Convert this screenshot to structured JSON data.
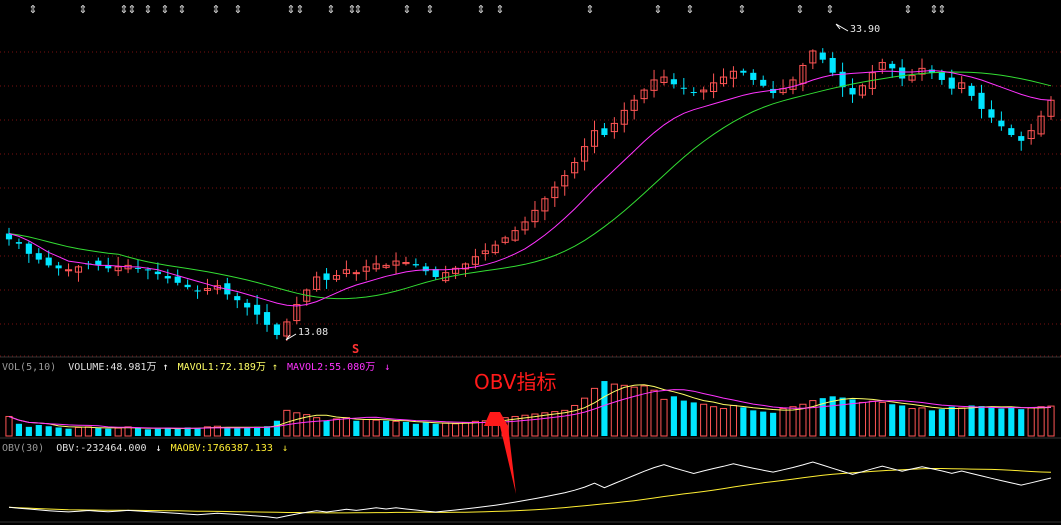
{
  "colors": {
    "up": "#ff5555",
    "down": "#00e5ff",
    "ma_short": "#ff33ff",
    "ma_long": "#33dd33",
    "vol_ma1": "#ffff66",
    "vol_ma2": "#ff33ff",
    "obv": "#ffffff",
    "maobv": "#ffee33",
    "grid": "#7a1010",
    "label": "#c0c0c0",
    "arrow": "#ff1a1a"
  },
  "price_panel": {
    "high_label": "33.90",
    "low_label": "13.08",
    "s_marker": "S"
  },
  "volume_panel": {
    "name": "VOL(5,10)",
    "volume_label": "VOLUME:48.981万",
    "mavol1_label": "MAVOL1:72.189万",
    "mavol2_label": "MAVOL2:55.080万",
    "up_arrow": "↑",
    "down_arrow": "↓"
  },
  "obv_panel": {
    "name": "OBV(30)",
    "obv_label": "OBV:-232464.000",
    "maobv_label": "MAOBV:1766387.133",
    "down_arrow": "↓"
  },
  "annotation": {
    "text": "OBV指标"
  },
  "chart_data": {
    "type": "candlestick",
    "price_min": 12.5,
    "price_max": 35,
    "high": 33.9,
    "low": 13.08,
    "closes": [
      20.0,
      19.7,
      19.0,
      18.6,
      18.2,
      18.0,
      17.9,
      18.1,
      18.3,
      18.2,
      18.0,
      18.1,
      18.2,
      18.0,
      17.9,
      17.6,
      17.3,
      17.0,
      16.7,
      16.4,
      16.6,
      16.8,
      16.2,
      15.8,
      15.3,
      14.8,
      14.1,
      13.4,
      14.3,
      15.5,
      16.5,
      17.4,
      17.2,
      17.5,
      17.9,
      17.7,
      18.1,
      18.3,
      18.2,
      18.5,
      18.4,
      18.2,
      17.8,
      17.4,
      17.7,
      18.0,
      18.3,
      18.8,
      19.2,
      19.6,
      20.1,
      20.6,
      21.2,
      22.0,
      22.8,
      23.6,
      24.4,
      25.3,
      26.4,
      27.5,
      27.2,
      28.0,
      28.9,
      29.6,
      30.3,
      31.0,
      31.2,
      30.7,
      30.4,
      30.1,
      30.3,
      30.8,
      31.2,
      31.6,
      31.5,
      31.0,
      30.6,
      30.1,
      30.4,
      31.0,
      32.0,
      33.0,
      32.4,
      31.5,
      30.5,
      30.0,
      30.6,
      31.5,
      32.2,
      31.8,
      31.1,
      31.3,
      31.8,
      31.5,
      31.0,
      30.4,
      30.8,
      29.9,
      29.0,
      28.4,
      27.8,
      27.2,
      26.8,
      27.5,
      28.5,
      29.6
    ],
    "volumes": [
      32,
      20,
      15,
      18,
      16,
      14,
      12,
      14,
      15,
      13,
      12,
      13,
      15,
      13,
      11,
      12,
      13,
      12,
      14,
      13,
      15,
      16,
      14,
      13,
      14,
      15,
      16,
      25,
      42,
      38,
      35,
      30,
      25,
      28,
      30,
      25,
      27,
      26,
      25,
      24,
      23,
      20,
      22,
      20,
      21,
      20,
      22,
      24,
      25,
      27,
      30,
      32,
      34,
      36,
      38,
      40,
      42,
      50,
      62,
      78,
      90,
      85,
      83,
      80,
      82,
      75,
      60,
      65,
      58,
      55,
      52,
      48,
      45,
      50,
      47,
      42,
      40,
      38,
      45,
      48,
      52,
      58,
      62,
      65,
      63,
      60,
      55,
      57,
      55,
      52,
      50,
      45,
      46,
      42,
      44,
      48,
      46,
      50,
      49,
      48,
      45,
      47,
      44,
      46,
      48,
      49
    ],
    "ma_short": [
      20.4,
      20.2,
      19.9,
      19.5,
      19.1,
      18.8,
      18.5,
      18.4,
      18.3,
      18.2,
      18.2,
      18.15,
      18.1,
      18.1,
      18.0,
      17.9,
      17.7,
      17.5,
      17.3,
      17.1,
      16.9,
      16.7,
      16.55,
      16.4,
      16.2,
      16.0,
      15.8,
      15.6,
      15.45,
      15.4,
      15.5,
      15.7,
      16.0,
      16.3,
      16.6,
      16.85,
      17.05,
      17.25,
      17.45,
      17.6,
      17.75,
      17.85,
      17.9,
      17.9,
      17.9,
      17.95,
      18.0,
      18.1,
      18.25,
      18.45,
      18.7,
      19.0,
      19.35,
      19.8,
      20.3,
      20.85,
      21.45,
      22.1,
      22.8,
      23.5,
      24.15,
      24.8,
      25.45,
      26.1,
      26.75,
      27.35,
      27.9,
      28.35,
      28.7,
      28.95,
      29.15,
      29.35,
      29.55,
      29.75,
      29.95,
      30.1,
      30.2,
      30.3,
      30.4,
      30.55,
      30.75,
      31.0,
      31.2,
      31.35,
      31.4,
      31.45,
      31.5,
      31.55,
      31.6,
      31.6,
      31.55,
      31.55,
      31.6,
      31.65,
      31.6,
      31.5,
      31.35,
      31.2,
      31.0,
      30.75,
      30.5,
      30.25,
      30.0,
      29.8,
      29.65,
      29.6
    ]
  }
}
